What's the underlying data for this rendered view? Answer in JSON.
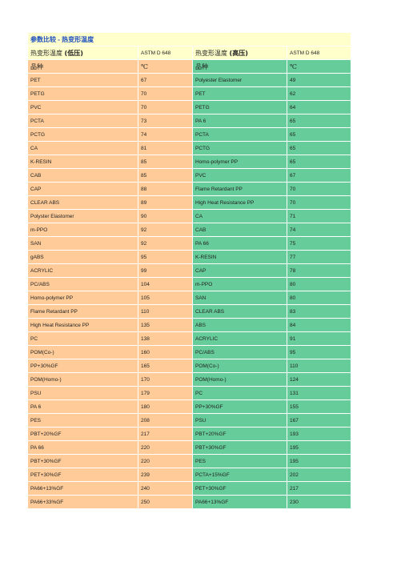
{
  "header": {
    "title": "参数比较 - 热变形温度"
  },
  "columns": {
    "left": {
      "label": "热变形温度",
      "condition": "(低压)",
      "standard": "ASTM D 648",
      "name": "品种",
      "unit": "℃"
    },
    "right": {
      "label": "热变形温度",
      "condition": "(高压)",
      "standard": "ASTM D 648",
      "name": "品种",
      "unit": "℃"
    }
  },
  "table": {
    "rows": [
      [
        "PET",
        67,
        "Polyester Elastomer",
        49
      ],
      [
        "PETG",
        70,
        "PET",
        62
      ],
      [
        "PVC",
        70,
        "PETG",
        64
      ],
      [
        "PCTA",
        73,
        "PA 6",
        65
      ],
      [
        "PCTG",
        74,
        "PCTA",
        65
      ],
      [
        "CA",
        81,
        "PCTG",
        65
      ],
      [
        "K-RESIN",
        85,
        "Homo-polymer PP",
        65
      ],
      [
        "CAB",
        85,
        "PVC",
        67
      ],
      [
        "CAP",
        88,
        "Flame Retardant PP",
        70
      ],
      [
        "CLEAR ABS",
        89,
        "High Heat Resistance PP",
        70
      ],
      [
        "Polyster Elastomer",
        90,
        "CA",
        71
      ],
      [
        "m-PPO",
        92,
        "CAB",
        74
      ],
      [
        "SAN",
        92,
        "PA 66",
        75
      ],
      [
        "gABS",
        95,
        "K-RESIN",
        77
      ],
      [
        "ACRYLIC",
        99,
        "CAP",
        78
      ],
      [
        "PC/ABS",
        104,
        "m-PPO",
        80
      ],
      [
        "Homo-polymer PP",
        105,
        "SAN",
        80
      ],
      [
        "Flame Retardant PP",
        110,
        "CLEAR ABS",
        83
      ],
      [
        "High Heat Resistance PP",
        135,
        "ABS",
        84
      ],
      [
        "PC",
        138,
        "ACRYLIC",
        91
      ],
      [
        "POM(Co-)",
        160,
        "PC/ABS",
        95
      ],
      [
        "PP+30%GF",
        165,
        "POM(Co-)",
        110
      ],
      [
        "POM(Homo-)",
        170,
        "POM(Homo-)",
        124
      ],
      [
        "PSU",
        179,
        "PC",
        131
      ],
      [
        "PA 6",
        180,
        "PP+30%GF",
        155
      ],
      [
        "PES",
        208,
        "PSU",
        167
      ],
      [
        "PBT+20%GF",
        217,
        "PBT+20%GF",
        193
      ],
      [
        "PA 66",
        220,
        "PBT+30%GF",
        195
      ],
      [
        "PBT+30%GF",
        220,
        "PES",
        195
      ],
      [
        "PET+30%GF",
        239,
        "PCTA+15%GF",
        202
      ],
      [
        "PA66+13%GF",
        240,
        "PET+30%GF",
        217
      ],
      [
        "PA66+33%GF",
        250,
        "PA66+13%GF",
        230
      ]
    ]
  }
}
